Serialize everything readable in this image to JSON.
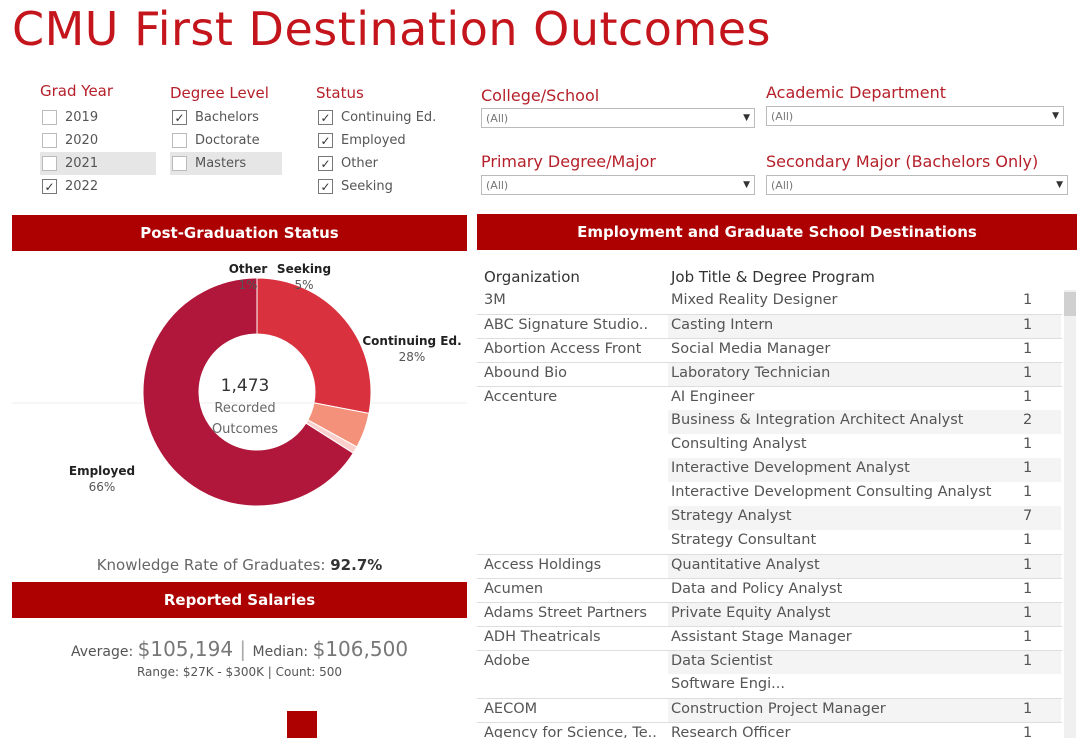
{
  "title": "CMU First Destination Outcomes",
  "filters": {
    "grad_year": {
      "label": "Grad Year",
      "options": [
        {
          "label": "2019",
          "checked": false
        },
        {
          "label": "2020",
          "checked": false
        },
        {
          "label": "2021",
          "checked": false
        },
        {
          "label": "2022",
          "checked": true
        }
      ]
    },
    "degree_level": {
      "label": "Degree Level",
      "options": [
        {
          "label": "Bachelors",
          "checked": true
        },
        {
          "label": "Doctorate",
          "checked": false
        },
        {
          "label": "Masters",
          "checked": false
        }
      ]
    },
    "status": {
      "label": "Status",
      "options": [
        {
          "label": "Continuing Ed.",
          "checked": true
        },
        {
          "label": "Employed",
          "checked": true
        },
        {
          "label": "Other",
          "checked": true
        },
        {
          "label": "Seeking",
          "checked": true
        }
      ]
    },
    "college": {
      "label": "College/School",
      "value": "(All)"
    },
    "department": {
      "label": "Academic Department",
      "value": "(All)"
    },
    "primary_major": {
      "label": "Primary Degree/Major",
      "value": "(All)"
    },
    "secondary_major": {
      "label": "Secondary Major (Bachelors Only)",
      "value": "(All)"
    }
  },
  "status_panel": {
    "banner": "Post-Graduation Status",
    "center_value": "1,473",
    "center_line1": "Recorded",
    "center_line2": "Outcomes",
    "knowledge_label": "Knowledge Rate of Graduates: ",
    "knowledge_value": "92.7%"
  },
  "salary_panel": {
    "banner": "Reported Salaries",
    "average_label": "Average: ",
    "average_value": "$105,194",
    "separator": " | ",
    "median_label": "Median: ",
    "median_value": "$106,500",
    "range_label": "Range: ",
    "range_value": "$27K - $300K",
    "count_separator": " | ",
    "count_label": "Count: ",
    "count_value": "500"
  },
  "destinations": {
    "banner": "Employment and Graduate School Destinations",
    "col_org": "Organization",
    "col_job": "Job Title & Degree Program",
    "rows": [
      {
        "org": "3M",
        "job": "Mixed Reality Designer",
        "count": "1"
      },
      {
        "org": "ABC Signature Studio..",
        "job": "Casting Intern",
        "count": "1"
      },
      {
        "org": "Abortion Access Front",
        "job": "Social Media Manager",
        "count": "1"
      },
      {
        "org": "Abound Bio",
        "job": "Laboratory Technician",
        "count": "1"
      },
      {
        "org": "Accenture",
        "job": "AI Engineer",
        "count": "1"
      },
      {
        "org": "",
        "job": "Business & Integration Architect Analyst",
        "count": "2"
      },
      {
        "org": "",
        "job": "Consulting Analyst",
        "count": "1"
      },
      {
        "org": "",
        "job": "Interactive Development Analyst",
        "count": "1"
      },
      {
        "org": "",
        "job": "Interactive Development Consulting Analyst",
        "count": "1"
      },
      {
        "org": "",
        "job": "Strategy Analyst",
        "count": "7"
      },
      {
        "org": "",
        "job": "Strategy Consultant",
        "count": "1"
      },
      {
        "org": "Access Holdings",
        "job": "Quantitative Analyst",
        "count": "1"
      },
      {
        "org": "Acumen",
        "job": "Data and Policy Analyst",
        "count": "1"
      },
      {
        "org": "Adams Street Partners",
        "job": "Private Equity Analyst",
        "count": "1"
      },
      {
        "org": "ADH Theatricals",
        "job": "Assistant Stage Manager",
        "count": "1"
      },
      {
        "org": "Adobe",
        "job": "Data Scientist",
        "count": "1"
      },
      {
        "org": "",
        "job": "Software Engi...",
        "count": ""
      },
      {
        "org": "AECOM",
        "job": "Construction Project Manager",
        "count": "1"
      },
      {
        "org": "Agency for Science, Te..",
        "job": "Research Officer",
        "count": "1"
      }
    ]
  },
  "chart_data": [
    {
      "type": "pie",
      "title": "Post-Graduation Status",
      "categories": [
        "Employed",
        "Continuing Ed.",
        "Seeking",
        "Other"
      ],
      "values": [
        66,
        28,
        5,
        1
      ],
      "labels": [
        "66%",
        "28%",
        "5%",
        "1%"
      ],
      "colors": [
        "#b0173a",
        "#d9313d",
        "#f4917a",
        "#fbcfcb"
      ],
      "center_total": 1473
    },
    {
      "type": "bar",
      "title": "Reported Salaries",
      "values": [],
      "colors": [
        "#ad0000"
      ]
    }
  ]
}
